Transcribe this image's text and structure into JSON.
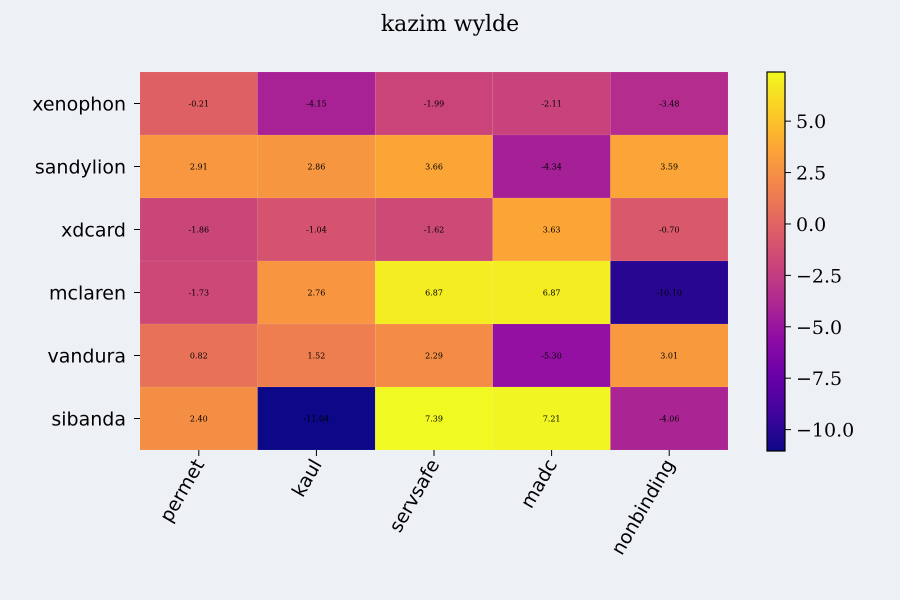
{
  "chart_data": {
    "type": "heatmap",
    "title": "kazim wylde",
    "rows": [
      "xenophon",
      "sandylion",
      "xdcard",
      "mclaren",
      "vandura",
      "sibanda"
    ],
    "columns": [
      "permet",
      "kaul",
      "servsafe",
      "madc",
      "nonbinding"
    ],
    "values": [
      [
        -0.21,
        -4.15,
        -1.99,
        -2.11,
        -3.48
      ],
      [
        2.91,
        2.86,
        3.66,
        -4.34,
        3.59
      ],
      [
        -1.86,
        -1.04,
        -1.62,
        3.63,
        -0.7
      ],
      [
        -1.73,
        2.76,
        6.87,
        6.87,
        -10.1
      ],
      [
        0.82,
        1.52,
        2.29,
        -5.3,
        3.01
      ],
      [
        2.4,
        -11.04,
        7.39,
        7.21,
        -4.06
      ]
    ],
    "labels": [
      [
        "-0.21",
        "-4.15",
        "-1.99",
        "-2.11",
        "-3.48"
      ],
      [
        "2.91",
        "2.86",
        "3.66",
        "-4.34",
        "3.59"
      ],
      [
        "-1.86",
        "-1.04",
        "-1.62",
        "3.63",
        "-0.70"
      ],
      [
        "-1.73",
        "2.76",
        "6.87",
        "6.87",
        "-10.10"
      ],
      [
        "0.82",
        "1.52",
        "2.29",
        "-5.30",
        "3.01"
      ],
      [
        "2.40",
        "-11.04",
        "7.39",
        "7.21",
        "-4.06"
      ]
    ],
    "colormap": "plasma",
    "vmin": -11.04,
    "vmax": 7.39,
    "colorbar": {
      "ticks": [
        5.0,
        2.5,
        0.0,
        -2.5,
        -5.0,
        -7.5,
        -10.0
      ],
      "tick_labels": [
        "5.0",
        "2.5",
        "0.0",
        "−2.5",
        "−5.0",
        "−7.5",
        "−10.0"
      ]
    },
    "background_color": "#edf1f6"
  }
}
